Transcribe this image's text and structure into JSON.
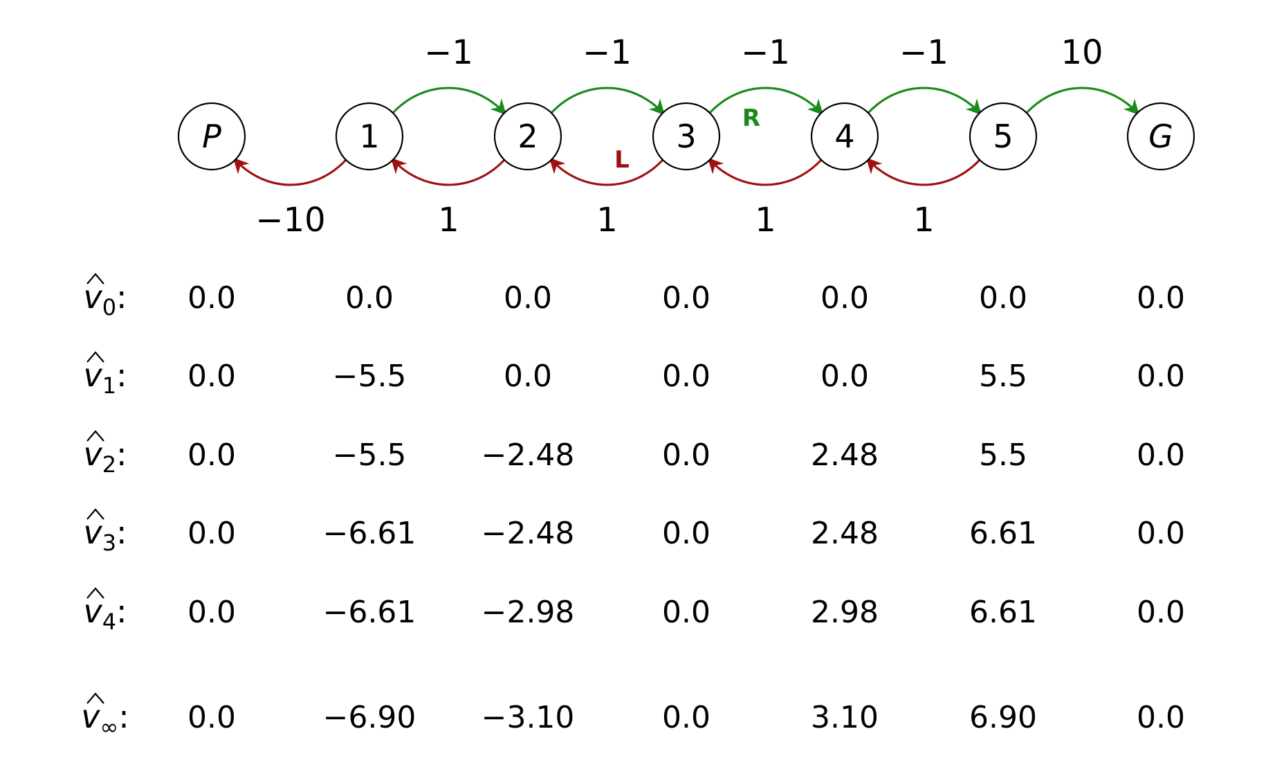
{
  "colors": {
    "right_arrow": "#1a8a1a",
    "left_arrow": "#a01010",
    "node_stroke": "#000000",
    "text": "#000000"
  },
  "states": [
    {
      "label": "P",
      "italic": true
    },
    {
      "label": "1",
      "italic": false
    },
    {
      "label": "2",
      "italic": false
    },
    {
      "label": "3",
      "italic": false
    },
    {
      "label": "4",
      "italic": false
    },
    {
      "label": "5",
      "italic": false
    },
    {
      "label": "G",
      "italic": true
    }
  ],
  "right_transitions": [
    {
      "from": 1,
      "to": 2,
      "reward": "−1"
    },
    {
      "from": 2,
      "to": 3,
      "reward": "−1"
    },
    {
      "from": 3,
      "to": 4,
      "reward": "−1"
    },
    {
      "from": 4,
      "to": 5,
      "reward": "−1"
    },
    {
      "from": 5,
      "to": 6,
      "reward": "10"
    }
  ],
  "left_transitions": [
    {
      "from": 1,
      "to": 0,
      "reward": "−10"
    },
    {
      "from": 2,
      "to": 1,
      "reward": "1"
    },
    {
      "from": 3,
      "to": 2,
      "reward": "1"
    },
    {
      "from": 4,
      "to": 3,
      "reward": "1"
    },
    {
      "from": 5,
      "to": 4,
      "reward": "1"
    }
  ],
  "action_labels": {
    "right": "R",
    "left": "L"
  },
  "value_rows": [
    {
      "symbol": "v",
      "subscript": "0",
      "values": [
        "0.0",
        "0.0",
        "0.0",
        "0.0",
        "0.0",
        "0.0",
        "0.0"
      ]
    },
    {
      "symbol": "v",
      "subscript": "1",
      "values": [
        "0.0",
        "−5.5",
        "0.0",
        "0.0",
        "0.0",
        "5.5",
        "0.0"
      ]
    },
    {
      "symbol": "v",
      "subscript": "2",
      "values": [
        "0.0",
        "−5.5",
        "−2.48",
        "0.0",
        "2.48",
        "5.5",
        "0.0"
      ]
    },
    {
      "symbol": "v",
      "subscript": "3",
      "values": [
        "0.0",
        "−6.61",
        "−2.48",
        "0.0",
        "2.48",
        "6.61",
        "0.0"
      ]
    },
    {
      "symbol": "v",
      "subscript": "4",
      "values": [
        "0.0",
        "−6.61",
        "−2.98",
        "0.0",
        "2.98",
        "6.61",
        "0.0"
      ]
    },
    {
      "symbol": "v",
      "subscript": "∞",
      "values": [
        "0.0",
        "−6.90",
        "−3.10",
        "0.0",
        "3.10",
        "6.90",
        "0.0"
      ]
    }
  ]
}
